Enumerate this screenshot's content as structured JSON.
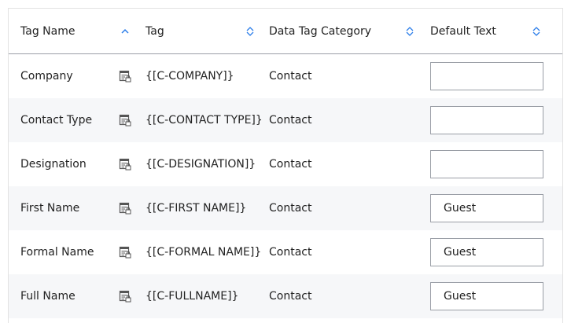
{
  "columns": [
    {
      "label": "Tag Name",
      "sort": "ascending"
    },
    {
      "label": "Tag",
      "sort": "none"
    },
    {
      "label": "Data Tag Category",
      "sort": "none"
    },
    {
      "label": "Default Text",
      "sort": "none"
    }
  ],
  "accent": "#2b7de9",
  "rows": [
    {
      "name": "Company",
      "tag": "{[C-COMPANY]}",
      "category": "Contact",
      "default": ""
    },
    {
      "name": "Contact Type",
      "tag": "{[C-CONTACT TYPE]}",
      "category": "Contact",
      "default": ""
    },
    {
      "name": "Designation",
      "tag": "{[C-DESIGNATION]}",
      "category": "Contact",
      "default": ""
    },
    {
      "name": "First Name",
      "tag": "{[C-FIRST NAME]}",
      "category": "Contact",
      "default": "Guest"
    },
    {
      "name": "Formal Name",
      "tag": "{[C-FORMAL NAME]}",
      "category": "Contact",
      "default": "Guest"
    },
    {
      "name": "Full Name",
      "tag": "{[C-FULLNAME]}",
      "category": "Contact",
      "default": "Guest"
    }
  ]
}
